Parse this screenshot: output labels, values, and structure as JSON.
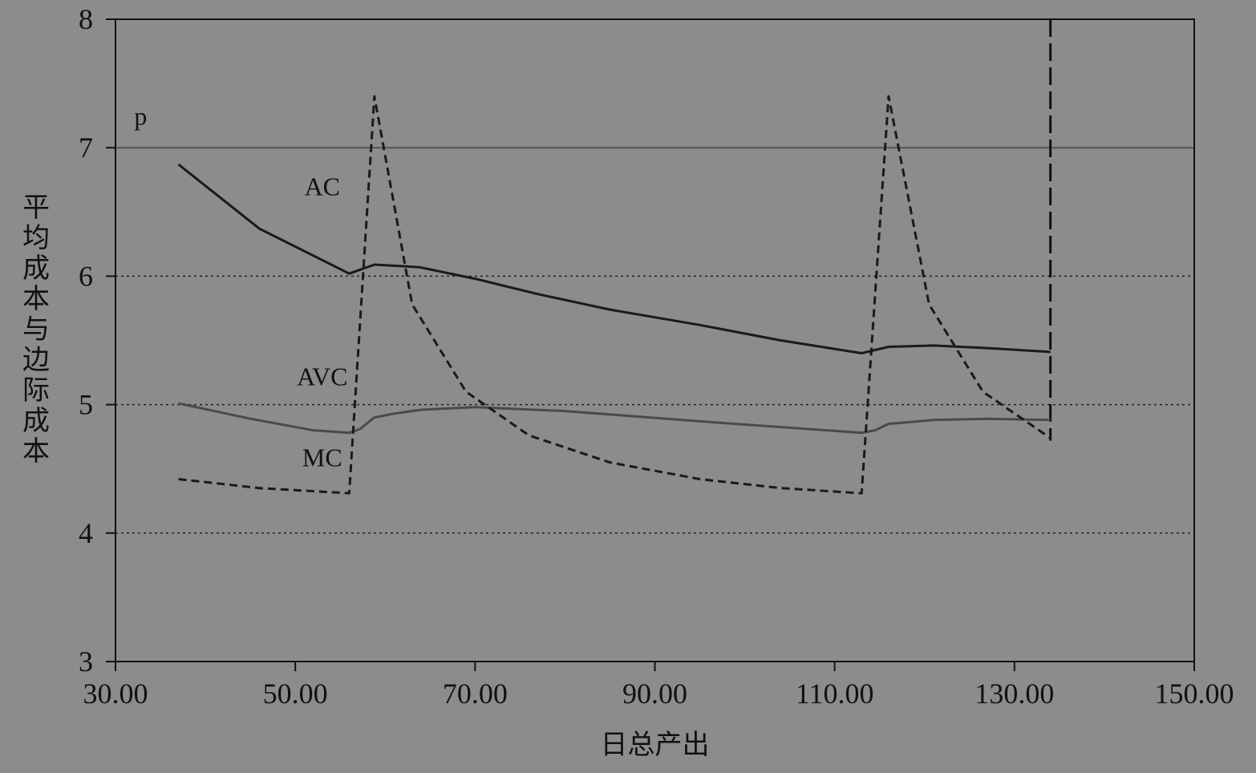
{
  "chart_data": {
    "type": "line",
    "xlabel": "日总产出",
    "ylabel": "平均成本与边际成本",
    "xlim": [
      30,
      150
    ],
    "ylim": [
      3,
      8
    ],
    "x_ticks": [
      "30.00",
      "50.00",
      "70.00",
      "90.00",
      "110.00",
      "130.00",
      "150.00"
    ],
    "y_ticks": [
      "3",
      "4",
      "5",
      "6",
      "7",
      "8"
    ],
    "grid": {
      "y_dotted_at": [
        4,
        5,
        6
      ]
    },
    "reference_lines": [
      {
        "name": "p",
        "y": 7
      }
    ],
    "vertical_line": {
      "x": 134,
      "style": "dashed"
    },
    "series": [
      {
        "name": "AC",
        "style": "solid-dark",
        "points": [
          [
            37,
            6.87
          ],
          [
            46,
            6.37
          ],
          [
            56,
            6.02
          ],
          [
            58.8,
            6.09
          ],
          [
            63.8,
            6.07
          ],
          [
            70,
            5.98
          ],
          [
            77,
            5.86
          ],
          [
            85,
            5.74
          ],
          [
            95,
            5.62
          ],
          [
            104,
            5.5
          ],
          [
            113,
            5.4
          ],
          [
            116,
            5.45
          ],
          [
            121,
            5.46
          ],
          [
            127,
            5.44
          ],
          [
            134,
            5.41
          ]
        ]
      },
      {
        "name": "AVC",
        "style": "solid-gray",
        "points": [
          [
            37,
            5.01
          ],
          [
            45,
            4.89
          ],
          [
            52,
            4.8
          ],
          [
            56,
            4.78
          ],
          [
            57.2,
            4.81
          ],
          [
            58.8,
            4.9
          ],
          [
            61,
            4.93
          ],
          [
            64,
            4.96
          ],
          [
            70,
            4.98
          ],
          [
            80,
            4.95
          ],
          [
            95,
            4.87
          ],
          [
            105,
            4.82
          ],
          [
            113,
            4.78
          ],
          [
            114.5,
            4.8
          ],
          [
            116,
            4.85
          ],
          [
            121,
            4.88
          ],
          [
            127,
            4.89
          ],
          [
            134,
            4.88
          ]
        ]
      },
      {
        "name": "MC",
        "style": "dashed",
        "points": [
          [
            37,
            4.42
          ],
          [
            46,
            4.35
          ],
          [
            56,
            4.31
          ],
          [
            58.8,
            7.4
          ],
          [
            63,
            5.78
          ],
          [
            69,
            5.1
          ],
          [
            76,
            4.76
          ],
          [
            85,
            4.55
          ],
          [
            95,
            4.42
          ],
          [
            104,
            4.35
          ],
          [
            113,
            4.31
          ],
          [
            116,
            7.4
          ],
          [
            120.5,
            5.78
          ],
          [
            126.5,
            5.1
          ],
          [
            134,
            4.74
          ]
        ]
      }
    ],
    "annotations": [
      {
        "text": "p",
        "x": 32.8,
        "y": 7.18
      },
      {
        "text": "AC",
        "x": 53,
        "y": 6.63
      },
      {
        "text": "AVC",
        "x": 53,
        "y": 5.15
      },
      {
        "text": "MC",
        "x": 53,
        "y": 4.52
      }
    ]
  }
}
